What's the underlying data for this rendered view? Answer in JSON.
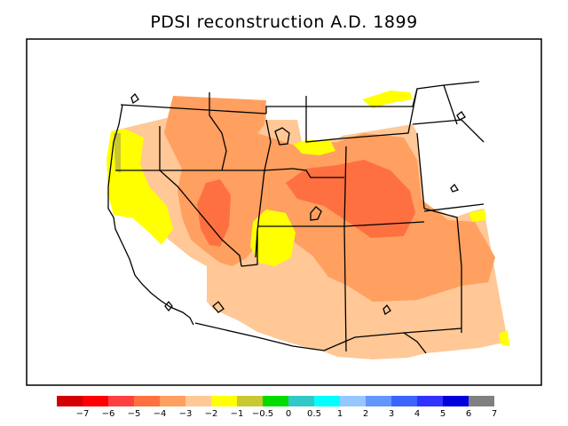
{
  "title": "PDSI reconstruction A.D. 1899",
  "legend": {
    "swatches": [
      "#d20000",
      "#ff0000",
      "#ff4040",
      "#ff7040",
      "#ff9f60",
      "#ffc896",
      "#ffff00",
      "#c8c832",
      "#00dc00",
      "#32c8c8",
      "#00ffff",
      "#96c8ff",
      "#6496ff",
      "#3c64ff",
      "#3232ff",
      "#0000dc",
      "#808080"
    ],
    "labels": [
      "−7",
      "−6",
      "−5",
      "−4",
      "−3",
      "−2",
      "−1",
      "−0.5",
      "0",
      "0.5",
      "1",
      "2",
      "3",
      "4",
      "5",
      "6",
      "7"
    ]
  },
  "colors": {
    "lt_minus2": "#ffc896",
    "lt_minus3": "#ff9f60",
    "lt_minus4": "#ff7040",
    "minus1_to_minus2": "#ffff00",
    "minus05_to_minus1": "#c8c832",
    "no_data": "#ffffff"
  }
}
